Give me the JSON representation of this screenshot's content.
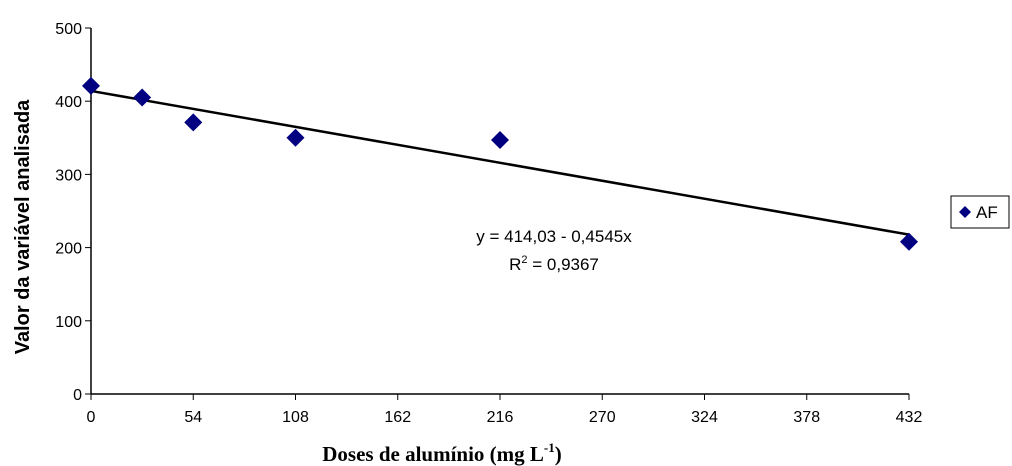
{
  "chart_data": {
    "type": "scatter",
    "title": "",
    "xlabel": "Doses de alumínio (mg L",
    "xlabel_superscript": "-1",
    "xlabel_suffix": ")",
    "ylabel": "Valor da variável analisada",
    "xlim": [
      0,
      432
    ],
    "ylim": [
      0,
      500
    ],
    "x_ticks": [
      0,
      54,
      108,
      162,
      216,
      270,
      324,
      378,
      432
    ],
    "y_ticks": [
      0,
      100,
      200,
      300,
      400,
      500
    ],
    "grid": false,
    "legend_position": "right",
    "series": [
      {
        "name": "AF",
        "marker": "diamond",
        "color": "#000080",
        "points": [
          {
            "x": 0,
            "y": 421
          },
          {
            "x": 27,
            "y": 405
          },
          {
            "x": 54,
            "y": 371
          },
          {
            "x": 108,
            "y": 350
          },
          {
            "x": 216,
            "y": 347
          },
          {
            "x": 432,
            "y": 208
          }
        ]
      }
    ],
    "trendline": {
      "intercept": 414.03,
      "slope": -0.4545,
      "color": "#000000",
      "equation": "y = 414,03 - 0,4545x",
      "r2_label": "R",
      "r2_superscript": "2",
      "r2_value": " = 0,9367"
    }
  }
}
